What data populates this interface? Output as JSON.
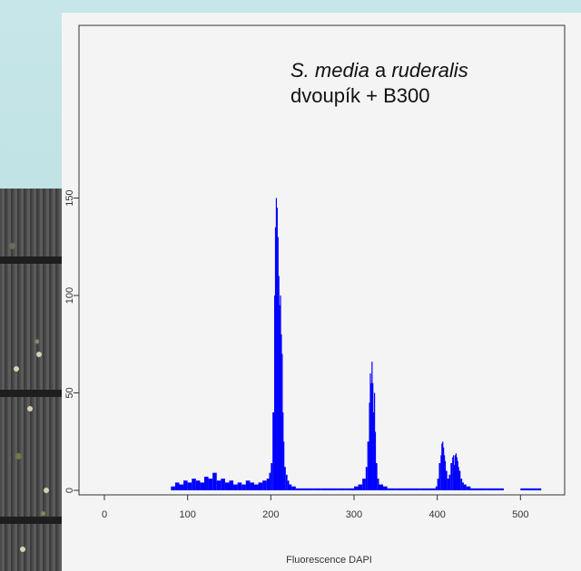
{
  "chart_data": {
    "type": "bar",
    "title": "",
    "xlabel": "Fluorescence DAPI",
    "ylabel": "",
    "xlim": [
      0,
      540
    ],
    "ylim": [
      0,
      160
    ],
    "x_ticks": [
      "0",
      "100",
      "200",
      "300",
      "400",
      "500"
    ],
    "y_ticks": [
      "0",
      "50",
      "100",
      "150"
    ],
    "bar_color": "#0000ff",
    "grid": false,
    "x": [
      80,
      85,
      90,
      95,
      100,
      105,
      110,
      115,
      120,
      125,
      130,
      135,
      140,
      145,
      150,
      155,
      160,
      165,
      170,
      175,
      180,
      185,
      190,
      195,
      198,
      200,
      202,
      204,
      205,
      206,
      207,
      208,
      209,
      210,
      211,
      212,
      213,
      214,
      215,
      216,
      218,
      220,
      222,
      225,
      230,
      240,
      250,
      260,
      270,
      280,
      290,
      300,
      305,
      310,
      314,
      316,
      318,
      319,
      320,
      321,
      322,
      323,
      324,
      325,
      326,
      328,
      330,
      335,
      340,
      350,
      360,
      370,
      380,
      390,
      398,
      400,
      402,
      404,
      405,
      406,
      407,
      408,
      409,
      410,
      412,
      414,
      416,
      418,
      419,
      420,
      421,
      422,
      423,
      424,
      425,
      426,
      428,
      430,
      432,
      435,
      440,
      460,
      480,
      500,
      520
    ],
    "values": [
      2,
      4,
      3,
      5,
      4,
      6,
      5,
      4,
      7,
      6,
      9,
      5,
      6,
      4,
      5,
      3,
      4,
      3,
      5,
      4,
      3,
      4,
      5,
      6,
      9,
      14,
      40,
      100,
      135,
      150,
      145,
      130,
      110,
      95,
      100,
      80,
      70,
      40,
      25,
      12,
      8,
      5,
      3,
      2,
      1,
      1,
      1,
      1,
      1,
      1,
      1,
      2,
      3,
      6,
      12,
      25,
      45,
      60,
      55,
      66,
      55,
      40,
      50,
      30,
      14,
      6,
      3,
      2,
      1,
      1,
      1,
      1,
      1,
      1,
      2,
      6,
      14,
      18,
      24,
      25,
      22,
      18,
      15,
      10,
      6,
      8,
      14,
      17,
      18,
      13,
      18,
      19,
      17,
      15,
      12,
      10,
      6,
      4,
      3,
      2,
      1,
      1,
      0,
      1,
      1
    ]
  },
  "annotation": {
    "line1_species": "S. media",
    "line1_conj": "a",
    "line1_species2": "ruderalis",
    "line2": "dvoupík + B300"
  }
}
